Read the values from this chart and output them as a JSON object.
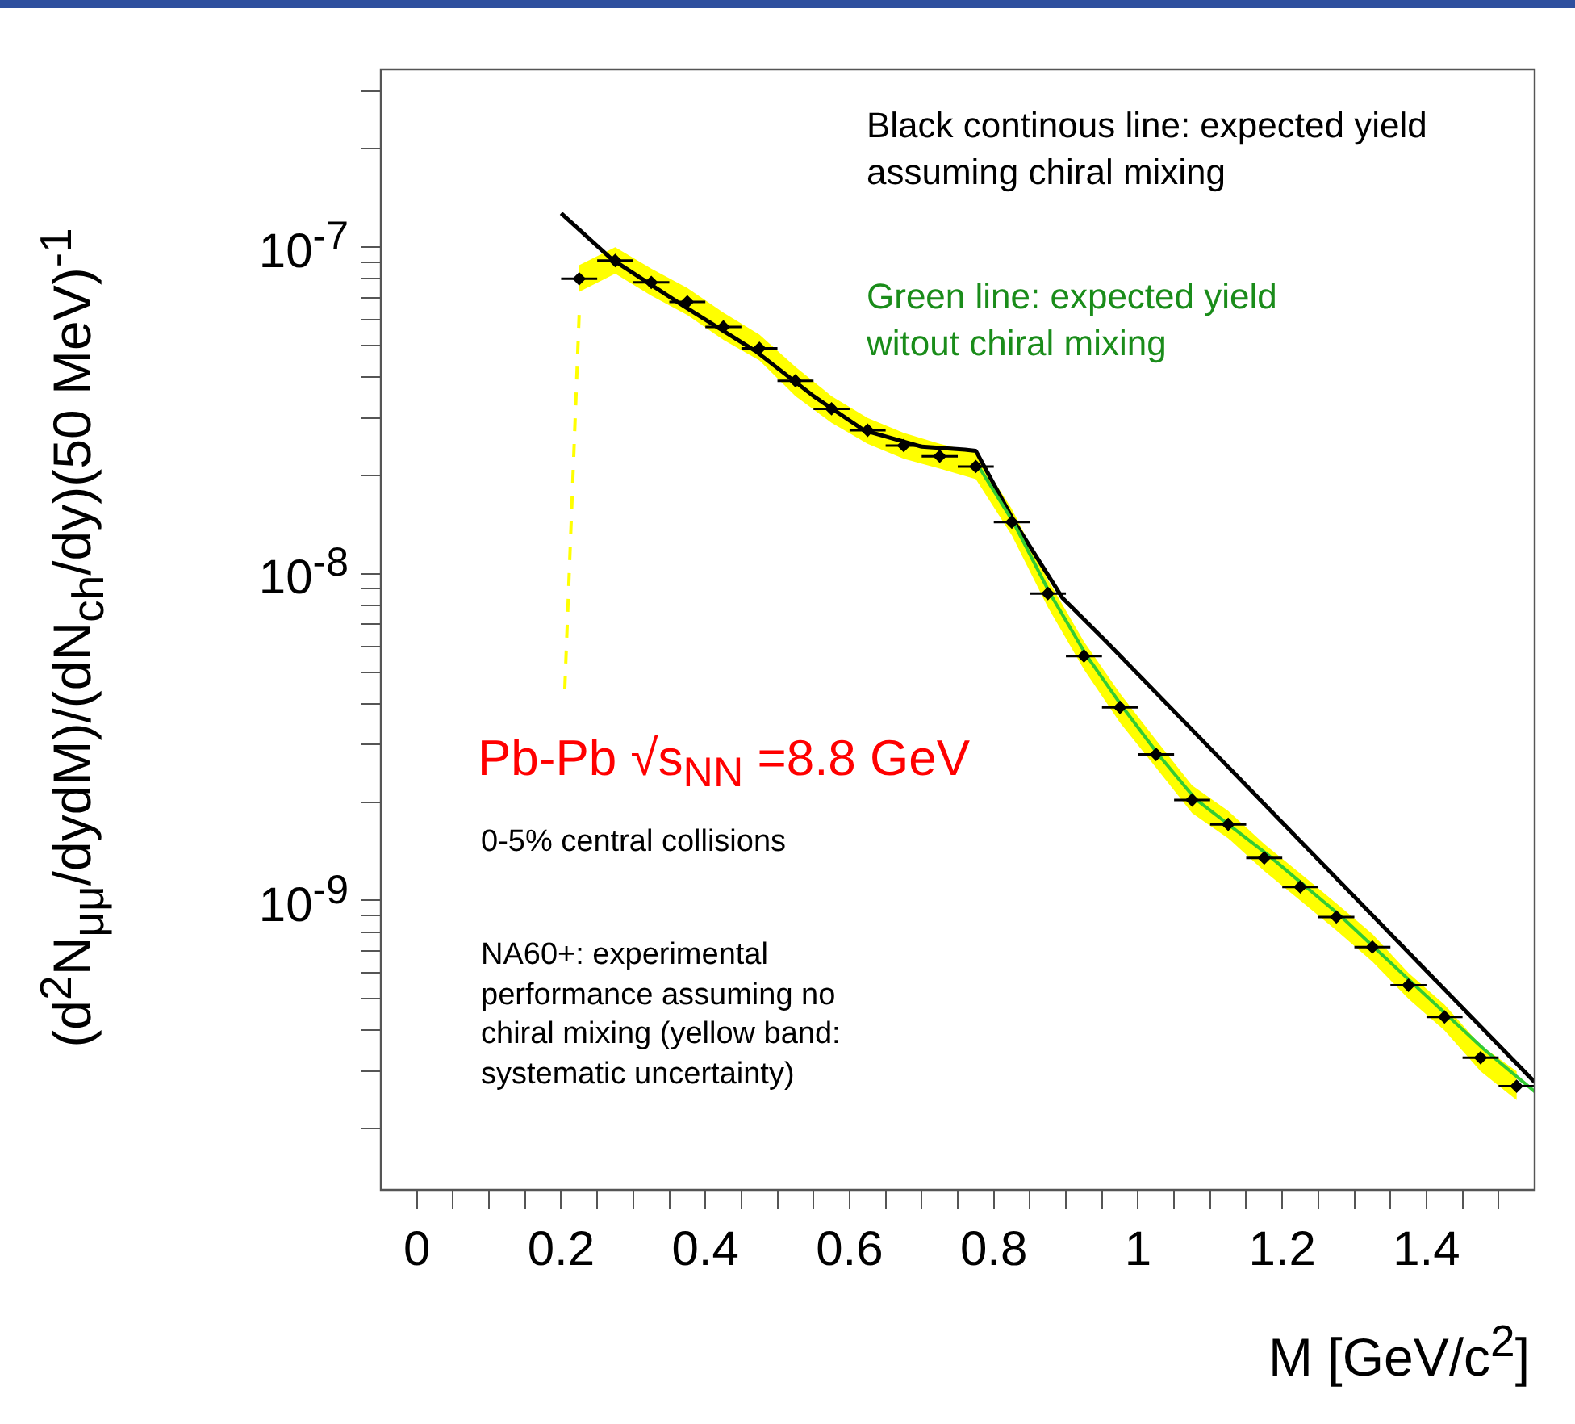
{
  "chart_data": {
    "type": "scatter",
    "log": true,
    "grid": false,
    "legend": false,
    "xlabel": "M [GeV/c$^{2}$]",
    "ylabel": "(d$^{2}$N$_{μμ}$/dydM)/(dN$_{ch}$/dy)(50 MeV)$^{-1}$",
    "xlim": [
      -0.05,
      1.55
    ],
    "xticks": [
      0,
      {
        "value": 0.05,
        "label": null
      },
      {
        "value": 0.1,
        "label": null
      },
      {
        "value": 0.15,
        "label": null
      },
      0.2,
      {
        "value": 0.25,
        "label": null
      },
      {
        "value": 0.3,
        "label": null
      },
      {
        "value": 0.35,
        "label": null
      },
      0.4,
      {
        "value": 0.45,
        "label": null
      },
      {
        "value": 0.5,
        "label": null
      },
      {
        "value": 0.55,
        "label": null
      },
      0.6,
      {
        "value": 0.65,
        "label": null
      },
      {
        "value": 0.7,
        "label": null
      },
      {
        "value": 0.75,
        "label": null
      },
      0.8,
      {
        "value": 0.85,
        "label": null
      },
      {
        "value": 0.9,
        "label": null
      },
      {
        "value": 0.95,
        "label": null
      },
      1,
      {
        "value": 1.05,
        "label": null
      },
      {
        "value": 1.1,
        "label": null
      },
      {
        "value": 1.15,
        "label": null
      },
      1.2,
      {
        "value": 1.25,
        "label": null
      },
      {
        "value": 1.3,
        "label": null
      },
      {
        "value": 1.35,
        "label": null
      },
      1.4,
      {
        "value": 1.45,
        "label": null
      },
      {
        "value": 1.5,
        "label": null
      }
    ],
    "ylim": [
      1.3e-10,
      3.5e-07
    ],
    "yticks": [
      {
        "value": 2e-10,
        "label": null
      },
      {
        "value": 3e-10,
        "label": null
      },
      {
        "value": 4e-10,
        "label": null
      },
      {
        "value": 5e-10,
        "label": null
      },
      {
        "value": 6e-10,
        "label": null
      },
      {
        "value": 7e-10,
        "label": null
      },
      {
        "value": 8e-10,
        "label": null
      },
      {
        "value": 9e-10,
        "label": null
      },
      {
        "value": 1e-09,
        "label": "10$^{-9}$"
      },
      {
        "value": 2e-09,
        "label": null
      },
      {
        "value": 3e-09,
        "label": null
      },
      {
        "value": 4e-09,
        "label": null
      },
      {
        "value": 5e-09,
        "label": null
      },
      {
        "value": 6e-09,
        "label": null
      },
      {
        "value": 7e-09,
        "label": null
      },
      {
        "value": 8e-09,
        "label": null
      },
      {
        "value": 9e-09,
        "label": null
      },
      {
        "value": 1e-08,
        "label": "10$^{-8}$"
      },
      {
        "value": 2e-08,
        "label": null
      },
      {
        "value": 3e-08,
        "label": null
      },
      {
        "value": 4e-08,
        "label": null
      },
      {
        "value": 5e-08,
        "label": null
      },
      {
        "value": 6e-08,
        "label": null
      },
      {
        "value": 7e-08,
        "label": null
      },
      {
        "value": 8e-08,
        "label": null
      },
      {
        "value": 9e-08,
        "label": null
      },
      {
        "value": 1e-07,
        "label": "10$^{-7}$"
      },
      {
        "value": 2e-07,
        "label": null
      },
      {
        "value": 3e-07,
        "label": null
      }
    ],
    "series": [
      {
        "color": "#000000",
        "marker": "diamond",
        "x": [
          0.225,
          0.275,
          0.325,
          0.375,
          0.425,
          0.475,
          0.525,
          0.575,
          0.625,
          0.675,
          0.725,
          0.775,
          0.825,
          0.875,
          0.925,
          0.975,
          1.025,
          1.075,
          1.125,
          1.175,
          1.225,
          1.275,
          1.325,
          1.375,
          1.425,
          1.475,
          1.525
        ],
        "values": [
          8e-08,
          9.1e-08,
          7.8e-08,
          6.8e-08,
          5.7e-08,
          4.9e-08,
          3.9e-08,
          3.2e-08,
          2.75e-08,
          2.47e-08,
          2.29e-08,
          2.13e-08,
          1.44e-08,
          8.7e-09,
          5.6e-09,
          3.9e-09,
          2.8e-09,
          2.03e-09,
          1.71e-09,
          1.35e-09,
          1.1e-09,
          8.9e-10,
          7.2e-10,
          5.5e-10,
          4.4e-10,
          3.3e-10,
          2.7e-10
        ],
        "xerrors": [
          0.025,
          0.025,
          0.025,
          0.025,
          0.025,
          0.025,
          0.025,
          0.025,
          0.025,
          0.025,
          0.025,
          0.025,
          0.025,
          0.025,
          0.025,
          0.025,
          0.025,
          0.025,
          0.025,
          0.025,
          0.025,
          0.025,
          0.025,
          0.025,
          0.025,
          0.025,
          0.025
        ],
        "upper": [
          8.8e-08,
          1e-07,
          8.6e-08,
          7.5e-08,
          6.3e-08,
          5.4e-08,
          4.3e-08,
          3.5e-08,
          3e-08,
          2.7e-08,
          2.5e-08,
          2.35e-08,
          1.58e-08,
          9.6e-09,
          6.2e-09,
          4.3e-09,
          3.1e-09,
          2.25e-09,
          1.88e-09,
          1.49e-09,
          1.21e-09,
          9.8e-10,
          7.9e-10,
          6e-10,
          4.8e-10,
          3.6e-10,
          3e-10
        ],
        "lower": [
          7.3e-08,
          8.3e-08,
          7.1e-08,
          6.2e-08,
          5.2e-08,
          4.5e-08,
          3.5e-08,
          2.9e-08,
          2.5e-08,
          2.25e-08,
          2.1e-08,
          1.95e-08,
          1.31e-08,
          7.9e-09,
          5.1e-09,
          3.5e-09,
          2.55e-09,
          1.85e-09,
          1.55e-09,
          1.23e-09,
          1e-09,
          8.1e-10,
          6.5e-10,
          5e-10,
          4e-10,
          3e-10,
          2.45e-10
        ]
      },
      {
        "type": "line",
        "color": "#33cc33",
        "x": [
          0.775,
          0.827,
          0.878,
          0.929,
          0.979,
          1.028,
          1.079,
          1.18,
          1.28,
          1.38,
          1.48,
          1.55
        ],
        "values": [
          2.2e-08,
          1.44e-08,
          8.7e-09,
          5.6e-09,
          3.9e-09,
          2.8e-09,
          2.05e-09,
          1.38e-09,
          9e-10,
          5.6e-10,
          3.5e-10,
          2.6e-10
        ]
      },
      {
        "type": "line",
        "color": "#000000",
        "x": [
          0.2,
          0.27,
          0.37,
          0.47,
          0.55,
          0.62,
          0.7,
          0.76,
          0.775,
          0.827,
          0.895,
          0.956,
          1.55
        ],
        "values": [
          1.27e-07,
          9.2e-08,
          6.6e-08,
          4.8e-08,
          3.5e-08,
          2.75e-08,
          2.45e-08,
          2.4e-08,
          2.38e-08,
          1.46e-08,
          8.45e-09,
          6.2e-09,
          2.78e-10
        ]
      },
      {
        "type": "line",
        "color": "#ffff00",
        "line_style": "dashed",
        "x": [
          0.225,
          0.205
        ],
        "values": [
          6.2e-08,
          4.4e-09
        ]
      }
    ],
    "annotations": [
      "Black continous line: expected yield assuming chiral mixing",
      "Green line: expected yield witout chiral mixing",
      "Pb-Pb √s$_{NN}$ =8.8 GeV",
      "0-5% central collisions",
      "NA60+: experimental performance assuming no chiral mixing (yellow band: systematic uncertainty)"
    ]
  }
}
